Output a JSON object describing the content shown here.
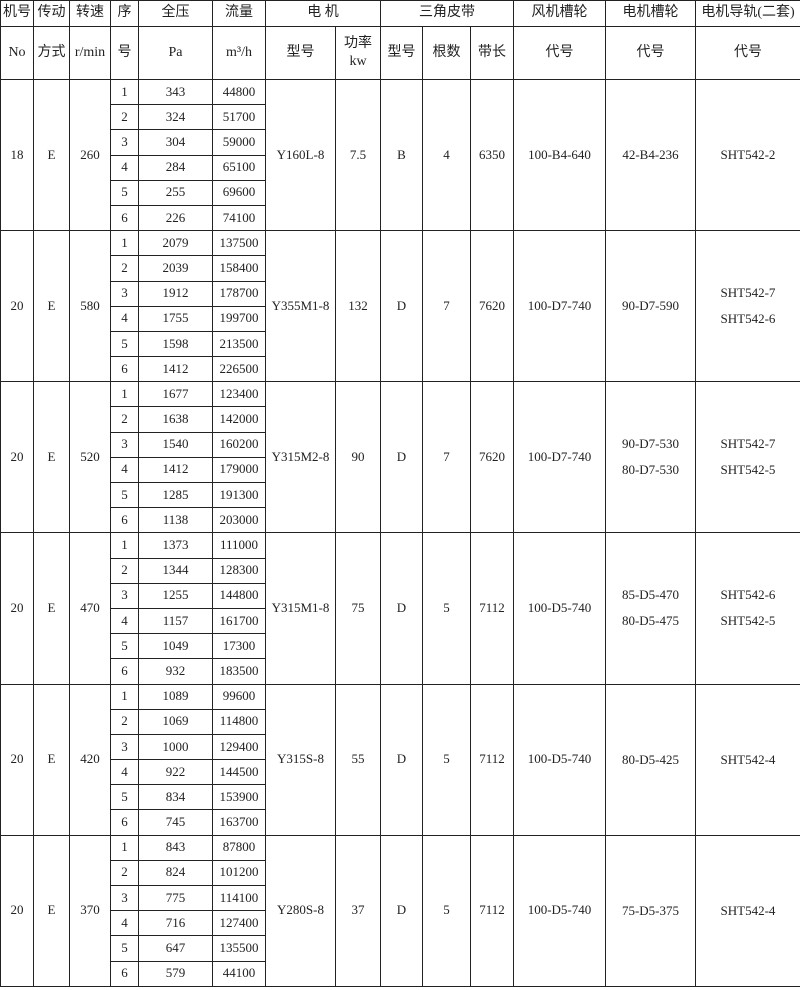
{
  "header": {
    "row1": [
      "机号",
      "传动",
      "转速",
      "序",
      "全压",
      "流量",
      "电  机",
      "三角皮带",
      "风机槽轮",
      "电机槽轮",
      "电机导轨(二套)"
    ],
    "row2": [
      "No",
      "方式",
      "r/min",
      "号",
      "Pa",
      "m³/h",
      "型号",
      "功率 kw",
      "型号",
      "根数",
      "带长",
      "代号",
      "代号",
      "代号"
    ]
  },
  "groups": [
    {
      "no": "18",
      "drive": "E",
      "speed": "260",
      "motor": "Y160L-8",
      "power": "7.5",
      "belt_type": "B",
      "belt_count": "4",
      "belt_len": "6350",
      "fan_pulley": "100-B4-640",
      "motor_pulley": [
        "42-B4-236"
      ],
      "rail": [
        "SHT542-2"
      ],
      "rows": [
        [
          "1",
          "343",
          "44800"
        ],
        [
          "2",
          "324",
          "51700"
        ],
        [
          "3",
          "304",
          "59000"
        ],
        [
          "4",
          "284",
          "65100"
        ],
        [
          "5",
          "255",
          "69600"
        ],
        [
          "6",
          "226",
          "74100"
        ]
      ]
    },
    {
      "no": "20",
      "drive": "E",
      "speed": "580",
      "motor": "Y355M1-8",
      "power": "132",
      "belt_type": "D",
      "belt_count": "7",
      "belt_len": "7620",
      "fan_pulley": "100-D7-740",
      "motor_pulley": [
        "90-D7-590"
      ],
      "rail": [
        "SHT542-7",
        "SHT542-6"
      ],
      "rows": [
        [
          "1",
          "2079",
          "137500"
        ],
        [
          "2",
          "2039",
          "158400"
        ],
        [
          "3",
          "1912",
          "178700"
        ],
        [
          "4",
          "1755",
          "199700"
        ],
        [
          "5",
          "1598",
          "213500"
        ],
        [
          "6",
          "1412",
          "226500"
        ]
      ]
    },
    {
      "no": "20",
      "drive": "E",
      "speed": "520",
      "motor": "Y315M2-8",
      "power": "90",
      "belt_type": "D",
      "belt_count": "7",
      "belt_len": "7620",
      "fan_pulley": "100-D7-740",
      "motor_pulley": [
        "90-D7-530",
        "80-D7-530"
      ],
      "rail": [
        "SHT542-7",
        "SHT542-5"
      ],
      "rows": [
        [
          "1",
          "1677",
          "123400"
        ],
        [
          "2",
          "1638",
          "142000"
        ],
        [
          "3",
          "1540",
          "160200"
        ],
        [
          "4",
          "1412",
          "179000"
        ],
        [
          "5",
          "1285",
          "191300"
        ],
        [
          "6",
          "1138",
          "203000"
        ]
      ]
    },
    {
      "no": "20",
      "drive": "E",
      "speed": "470",
      "motor": "Y315M1-8",
      "power": "75",
      "belt_type": "D",
      "belt_count": "5",
      "belt_len": "7112",
      "fan_pulley": "100-D5-740",
      "motor_pulley": [
        "85-D5-470",
        "80-D5-475"
      ],
      "rail": [
        "SHT542-6",
        "SHT542-5"
      ],
      "rows": [
        [
          "1",
          "1373",
          "111000"
        ],
        [
          "2",
          "1344",
          "128300"
        ],
        [
          "3",
          "1255",
          "144800"
        ],
        [
          "4",
          "1157",
          "161700"
        ],
        [
          "5",
          "1049",
          "17300"
        ],
        [
          "6",
          "932",
          "183500"
        ]
      ]
    },
    {
      "no": "20",
      "drive": "E",
      "speed": "420",
      "motor": "Y315S-8",
      "power": "55",
      "belt_type": "D",
      "belt_count": "5",
      "belt_len": "7112",
      "fan_pulley": "100-D5-740",
      "motor_pulley": [
        "80-D5-425"
      ],
      "rail": [
        "SHT542-4"
      ],
      "rows": [
        [
          "1",
          "1089",
          "99600"
        ],
        [
          "2",
          "1069",
          "114800"
        ],
        [
          "3",
          "1000",
          "129400"
        ],
        [
          "4",
          "922",
          "144500"
        ],
        [
          "5",
          "834",
          "153900"
        ],
        [
          "6",
          "745",
          "163700"
        ]
      ]
    },
    {
      "no": "20",
      "drive": "E",
      "speed": "370",
      "motor": "Y280S-8",
      "power": "37",
      "belt_type": "D",
      "belt_count": "5",
      "belt_len": "7112",
      "fan_pulley": "100-D5-740",
      "motor_pulley": [
        "75-D5-375"
      ],
      "rail": [
        "SHT542-4"
      ],
      "rows": [
        [
          "1",
          "843",
          "87800"
        ],
        [
          "2",
          "824",
          "101200"
        ],
        [
          "3",
          "775",
          "114100"
        ],
        [
          "4",
          "716",
          "127400"
        ],
        [
          "5",
          "647",
          "135500"
        ],
        [
          "6",
          "579",
          "44100"
        ]
      ]
    }
  ]
}
